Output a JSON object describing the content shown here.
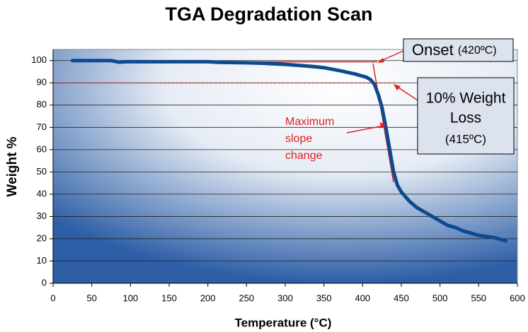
{
  "chart_data": {
    "type": "line",
    "title": "TGA Degradation Scan",
    "x_label": "Temperature (°C)",
    "y_label": "Weight %",
    "x": [
      25,
      75,
      85,
      95,
      150,
      200,
      215,
      250,
      270,
      300,
      320,
      340,
      350,
      370,
      390,
      405,
      410,
      415,
      420,
      425,
      430,
      435,
      440,
      445,
      450,
      460,
      470,
      480,
      490,
      500,
      510,
      520,
      530,
      540,
      550,
      560,
      570,
      580,
      585
    ],
    "series": [
      {
        "name": "Weight",
        "color": "#0d4a8f",
        "values": [
          100,
          100,
          99.3,
          99.5,
          99.5,
          99.5,
          99.2,
          99.0,
          98.8,
          98.3,
          97.8,
          97.2,
          96.8,
          95.5,
          94,
          92.5,
          91.5,
          89.5,
          85,
          79,
          70,
          60,
          50,
          44,
          41,
          37,
          34,
          32,
          30,
          28,
          26,
          25,
          23.5,
          22.5,
          21.5,
          21,
          20.5,
          19.5,
          19
        ]
      }
    ],
    "xlim": [
      0,
      600
    ],
    "xticks": [
      0,
      50,
      100,
      150,
      200,
      250,
      300,
      350,
      400,
      450,
      500,
      550,
      600
    ],
    "ylim": [
      0,
      105
    ],
    "yticks": [
      0,
      10,
      20,
      30,
      40,
      50,
      60,
      70,
      80,
      90,
      100
    ],
    "grid": true,
    "annotations": {
      "onset": {
        "label": "Onset",
        "detail": "(420ºC)"
      },
      "weight_loss": {
        "lines": [
          "10% Weight",
          "Loss",
          "(415ºC)"
        ]
      },
      "slope": {
        "lines": [
          "Maximum",
          "slope",
          "change"
        ]
      }
    }
  }
}
